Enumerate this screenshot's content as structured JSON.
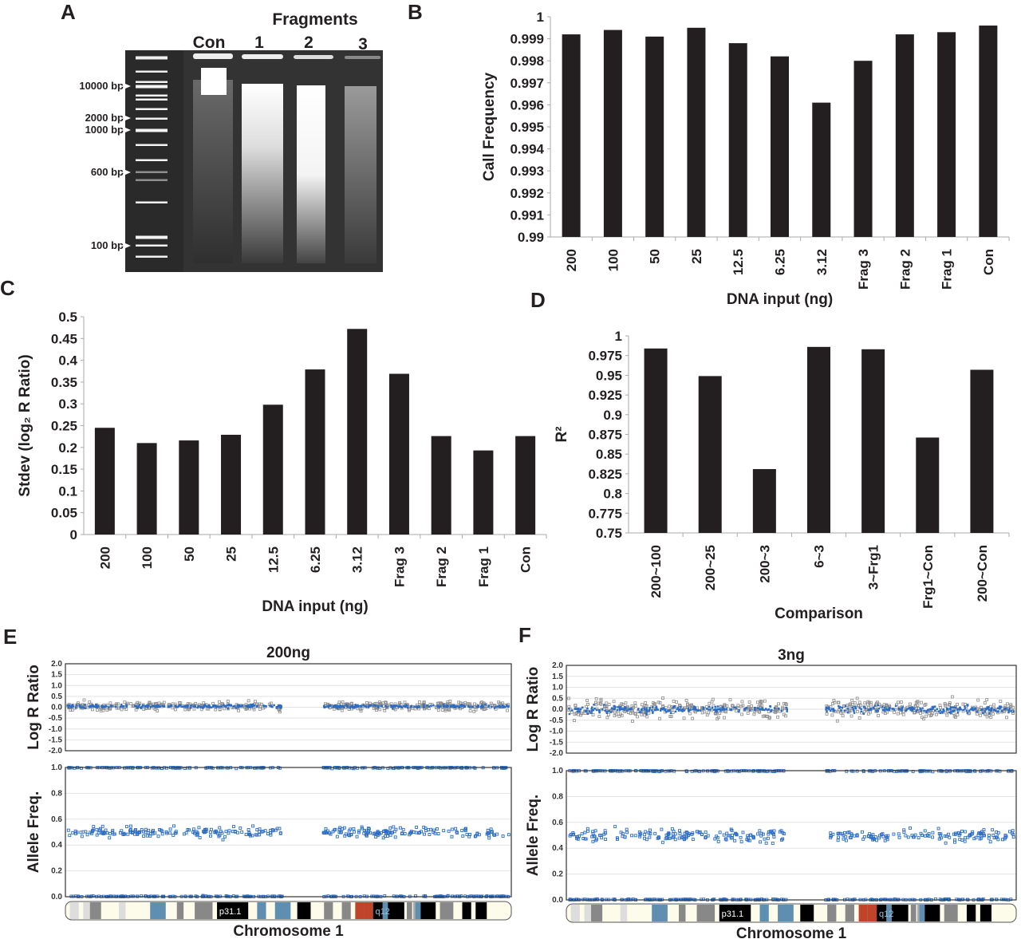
{
  "panel_letters": {
    "a": "A",
    "b": "B",
    "c": "C",
    "d": "D",
    "e": "E",
    "f": "F"
  },
  "gel": {
    "header": "Fragments",
    "lanes": [
      "Con",
      "1",
      "2",
      "3"
    ],
    "markers": [
      "10000 bp",
      "2000 bp",
      "1000 bp",
      "600 bp",
      "100 bp"
    ]
  },
  "chart_data": [
    {
      "id": "B",
      "type": "bar",
      "categories": [
        "200",
        "100",
        "50",
        "25",
        "12.5",
        "6.25",
        "3.12",
        "Frag 3",
        "Frag 2",
        "Frag 1",
        "Con"
      ],
      "values": [
        0.9992,
        0.9994,
        0.9991,
        0.9995,
        0.9988,
        0.9982,
        0.9961,
        0.998,
        0.9992,
        0.9993,
        0.9996
      ],
      "xlabel": "DNA input (ng)",
      "ylabel": "Call Frequency",
      "ylim": [
        0.99,
        1
      ],
      "yticks": [
        "0.99",
        "0.991",
        "0.992",
        "0.993",
        "0.994",
        "0.995",
        "0.996",
        "0.997",
        "0.998",
        "0.999",
        "1"
      ],
      "grid": false
    },
    {
      "id": "C",
      "type": "bar",
      "categories": [
        "200",
        "100",
        "50",
        "25",
        "12.5",
        "6.25",
        "3.12",
        "Frag 3",
        "Frag 2",
        "Frag 1",
        "Con"
      ],
      "values": [
        0.245,
        0.21,
        0.216,
        0.229,
        0.298,
        0.379,
        0.472,
        0.369,
        0.226,
        0.193,
        0.226
      ],
      "xlabel": "DNA input (ng)",
      "ylabel": "Stdev (log₂ R Ratio)",
      "ylim": [
        0,
        0.5
      ],
      "yticks": [
        "0",
        "0.05",
        "0.1",
        "0.15",
        "0.2",
        "0.25",
        "0.3",
        "0.35",
        "0.4",
        "0.45",
        "0.5"
      ],
      "grid": false
    },
    {
      "id": "D",
      "type": "bar",
      "categories": [
        "200~100",
        "200~25",
        "200~3",
        "6~3",
        "3~Frg1",
        "Frg1~Con",
        "200~Con"
      ],
      "values": [
        0.984,
        0.949,
        0.831,
        0.986,
        0.983,
        0.871,
        0.957
      ],
      "xlabel": "Comparison",
      "ylabel": "R²",
      "ylim": [
        0.75,
        1
      ],
      "yticks": [
        "0.75",
        "0.775",
        "0.8",
        "0.825",
        "0.85",
        "0.875",
        "0.9",
        "0.925",
        "0.95",
        "0.975",
        "1"
      ],
      "grid": false
    },
    {
      "id": "E",
      "type": "scatter",
      "title": "200ng",
      "lrr": {
        "ylabel": "Log R Ratio",
        "ylim": [
          -2,
          2
        ],
        "yticks": [
          "2.0",
          "1.5",
          "1.0",
          "0.5",
          "0.0",
          "-0.5",
          "-1.0",
          "-1.5",
          "-2.0"
        ],
        "mean": 0.05,
        "spread": 0.12
      },
      "baf": {
        "ylabel": "Allele Freq.",
        "ylim": [
          0,
          1
        ],
        "yticks": [
          "1.0",
          "0.8",
          "0.6",
          "0.4",
          "0.2",
          "0.0"
        ],
        "clusters": [
          0,
          0.5,
          1
        ],
        "het_spread": 0.04
      },
      "xlabel": "Chromosome 1",
      "bands": [
        "p31.1",
        "q12"
      ],
      "colors": {
        "lrr_raw": "#8c8c8c",
        "lrr_smooth": "#2b6cc4",
        "baf": "#2b6cc4"
      }
    },
    {
      "id": "F",
      "type": "scatter",
      "title": "3ng",
      "lrr": {
        "ylabel": "Log R Ratio",
        "ylim": [
          -2,
          2
        ],
        "yticks": [
          "2.0",
          "1.5",
          "1.0",
          "0.5",
          "0.0",
          "-0.5",
          "-1.0",
          "-1.5",
          "-2.0"
        ],
        "mean": 0.0,
        "spread": 0.25
      },
      "baf": {
        "ylabel": "Allele Freq.",
        "ylim": [
          0,
          1
        ],
        "yticks": [
          "1.0",
          "0.8",
          "0.6",
          "0.4",
          "0.2",
          "0.0"
        ],
        "clusters": [
          0,
          0.5,
          1
        ],
        "het_spread": 0.045
      },
      "xlabel": "Chromosome 1",
      "bands": [
        "p31.1",
        "q12"
      ],
      "colors": {
        "lrr_raw": "#8c8c8c",
        "lrr_smooth": "#2b6cc4",
        "baf": "#2b6cc4"
      }
    }
  ]
}
